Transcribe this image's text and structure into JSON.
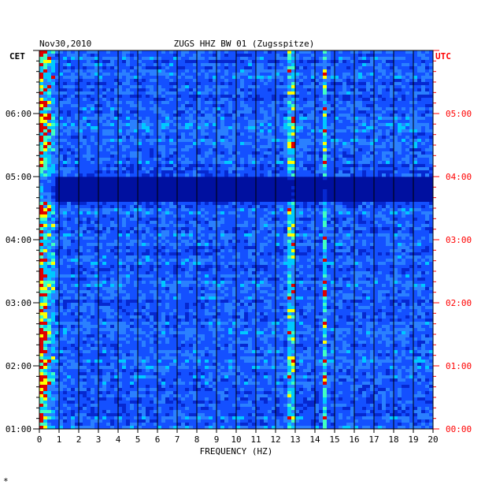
{
  "header": {
    "date": "Nov30,2010",
    "station": "ZUGS HHZ BW 01 (Zugsspitze)",
    "left_zone": "CET",
    "right_zone": "UTC"
  },
  "colors": {
    "background_low": "#0010a0",
    "mid": "#1050ff",
    "high": "#00e0ff",
    "peak": "#ffff00",
    "max": "#e00000",
    "utc_label": "#ff0000"
  },
  "chart_data": {
    "type": "heatmap",
    "title": "ZUGS HHZ BW 01 (Zugsspitze)",
    "xlabel": "FREQUENCY (HZ)",
    "x_ticks": [
      "0",
      "1",
      "2",
      "3",
      "4",
      "5",
      "6",
      "7",
      "8",
      "9",
      "10",
      "11",
      "12",
      "13",
      "14",
      "15",
      "16",
      "17",
      "18",
      "19",
      "20"
    ],
    "xlim": [
      0,
      20
    ],
    "y_ticks_left": [
      "01:00",
      "02:00",
      "03:00",
      "04:00",
      "05:00",
      "06:00"
    ],
    "y_ticks_right": [
      "00:00",
      "01:00",
      "02:00",
      "03:00",
      "04:00",
      "05:00"
    ],
    "time_range_cet": [
      "01:00",
      "07:00"
    ],
    "features": [
      {
        "name": "low-frequency noise band",
        "freq_range_hz": [
          0,
          0.8
        ],
        "intensity": "high"
      },
      {
        "name": "spectral line",
        "freq_hz": 12.8,
        "intensity": "medium"
      },
      {
        "name": "spectral line",
        "freq_hz": 14.5,
        "intensity": "medium"
      },
      {
        "name": "quiet band",
        "time_cet": "04:45",
        "intensity": "low"
      }
    ],
    "grid": true
  },
  "footer_mark": "*"
}
